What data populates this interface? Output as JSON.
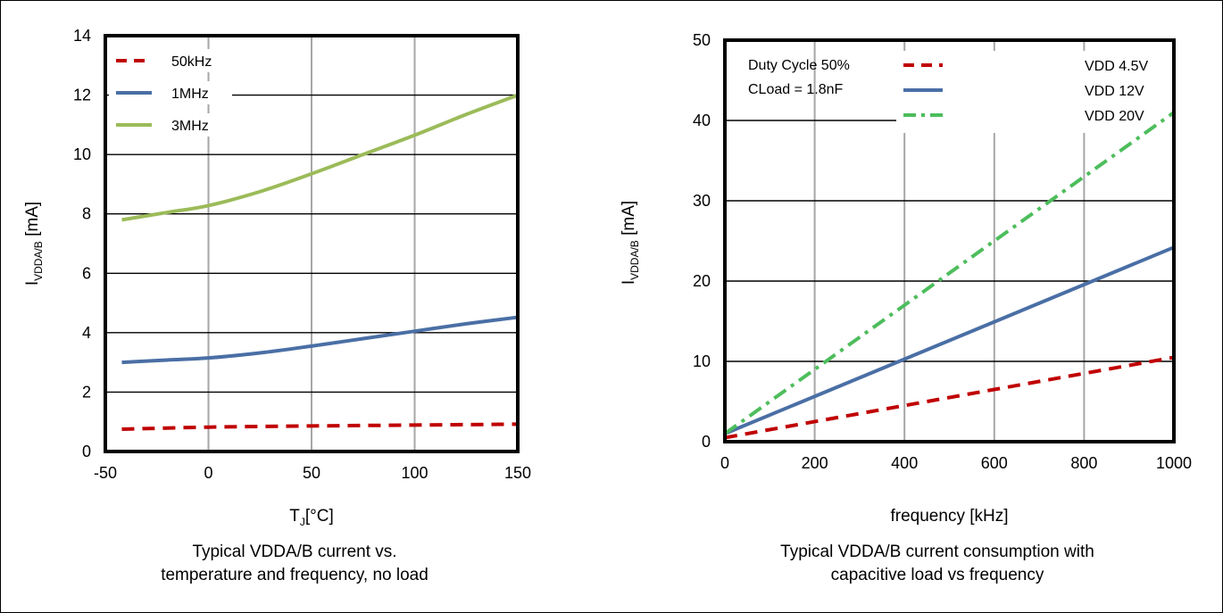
{
  "chart_data": [
    {
      "type": "line",
      "title": "",
      "xlabel": "T",
      "xlabel_sub": "J",
      "xlabel_unit": "[°C]",
      "ylabel": "I",
      "ylabel_sub": "VDDA/B",
      "ylabel_unit": " [mA]",
      "xlim": [
        -50,
        150
      ],
      "ylim": [
        0,
        14
      ],
      "xticks": [
        -50,
        0,
        50,
        100,
        150
      ],
      "yticks": [
        0,
        2,
        4,
        6,
        8,
        10,
        12,
        14
      ],
      "grid": "vertical and horizontal",
      "legend_position": "top-left",
      "series": [
        {
          "name": "50kHz",
          "color": "#c00000",
          "style": "dashed",
          "x": [
            -42,
            0,
            50,
            100,
            150
          ],
          "y": [
            0.75,
            0.82,
            0.86,
            0.89,
            0.92
          ]
        },
        {
          "name": "1MHz",
          "color": "#4a6fa5",
          "style": "solid",
          "x": [
            -42,
            -20,
            0,
            25,
            50,
            75,
            100,
            125,
            150
          ],
          "y": [
            3.0,
            3.08,
            3.15,
            3.32,
            3.55,
            3.8,
            4.05,
            4.3,
            4.52
          ]
        },
        {
          "name": "3MHz",
          "color": "#9bbb59",
          "style": "solid",
          "x": [
            -42,
            -20,
            0,
            25,
            50,
            75,
            100,
            125,
            150
          ],
          "y": [
            7.8,
            8.05,
            8.28,
            8.75,
            9.35,
            10.0,
            10.65,
            11.35,
            12.0
          ]
        }
      ],
      "caption": [
        "Typical VDDA/B current vs.",
        "temperature and frequency, no load"
      ]
    },
    {
      "type": "line",
      "title": "",
      "xlabel": "frequency [kHz]",
      "ylabel": "I",
      "ylabel_sub": "VDDA/B",
      "ylabel_unit": " [mA]",
      "xlim": [
        0,
        1000
      ],
      "ylim": [
        0,
        50
      ],
      "xticks": [
        0,
        200,
        400,
        600,
        800,
        1000
      ],
      "yticks": [
        0,
        10,
        20,
        30,
        40,
        50
      ],
      "grid": "vertical and horizontal",
      "legend_position": "top-right",
      "annotations": [
        "Duty Cycle 50%",
        "CLoad = 1.8nF"
      ],
      "series": [
        {
          "name": "VDD 4.5V",
          "color": "#c00000",
          "style": "dashed",
          "x": [
            0,
            1000
          ],
          "y": [
            0.5,
            10.5
          ]
        },
        {
          "name": "VDD 12V",
          "color": "#4a6fa5",
          "style": "solid",
          "x": [
            0,
            1000
          ],
          "y": [
            1.0,
            24.2
          ]
        },
        {
          "name": "VDD 20V",
          "color": "#4dbd5c",
          "style": "dashdot",
          "x": [
            0,
            1000
          ],
          "y": [
            1.0,
            41.0
          ]
        }
      ],
      "caption": [
        "Typical VDDA/B current consumption with",
        "capacitive load vs frequency"
      ]
    }
  ]
}
